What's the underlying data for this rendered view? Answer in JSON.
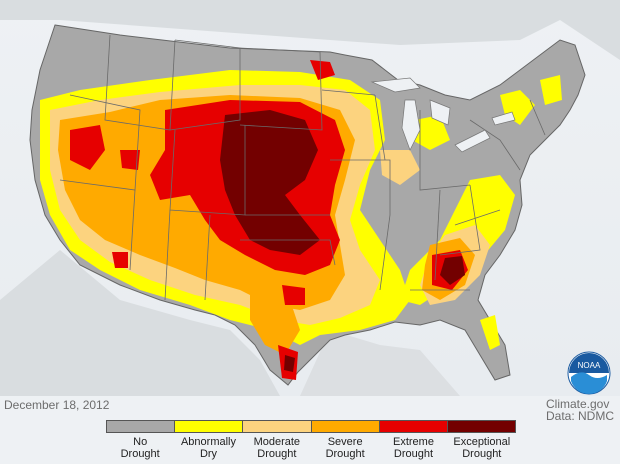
{
  "date": "December 18, 2012",
  "credit_line1": "Climate.gov",
  "credit_line2": "Data: NDMC",
  "logo": {
    "text": "NOAA",
    "icon": "noaa-logo"
  },
  "legend": [
    {
      "line1": "No",
      "line2": "Drought",
      "color": "#a8a8a8"
    },
    {
      "line1": "Abnormally",
      "line2": "Dry",
      "color": "#ffff00"
    },
    {
      "line1": "Moderate",
      "line2": "Drought",
      "color": "#fcd37f"
    },
    {
      "line1": "Severe",
      "line2": "Drought",
      "color": "#ffaa00"
    },
    {
      "line1": "Extreme",
      "line2": "Drought",
      "color": "#e60000"
    },
    {
      "line1": "Exceptional",
      "line2": "Drought",
      "color": "#730000"
    }
  ],
  "colors": {
    "background": "#eef1f4",
    "land_outside": "#d6dadd",
    "state_border": "#6a6a6a"
  }
}
